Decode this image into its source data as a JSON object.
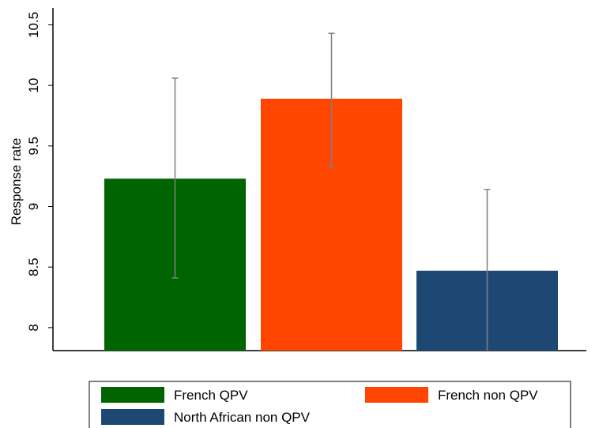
{
  "chart_data": {
    "type": "bar",
    "y_label": "Response rate",
    "series": [
      {
        "name": "French QPV",
        "color": "#006400",
        "values": [
          9.23
        ],
        "error_low": [
          8.41
        ],
        "error_high": [
          10.06
        ]
      },
      {
        "name": "French non QPV",
        "color": "#ff4500",
        "values": [
          9.89
        ],
        "error_low": [
          9.33
        ],
        "error_high": [
          10.43
        ]
      },
      {
        "name": "North African non QPV",
        "color": "#1c4873",
        "values": [
          8.47
        ],
        "error_low": [
          7.8
        ],
        "error_high": [
          9.14
        ]
      }
    ],
    "ylim": [
      7.81,
      10.64
    ],
    "yticks": [
      8,
      8.5,
      9,
      9.5,
      10,
      10.5
    ],
    "grid": false
  }
}
